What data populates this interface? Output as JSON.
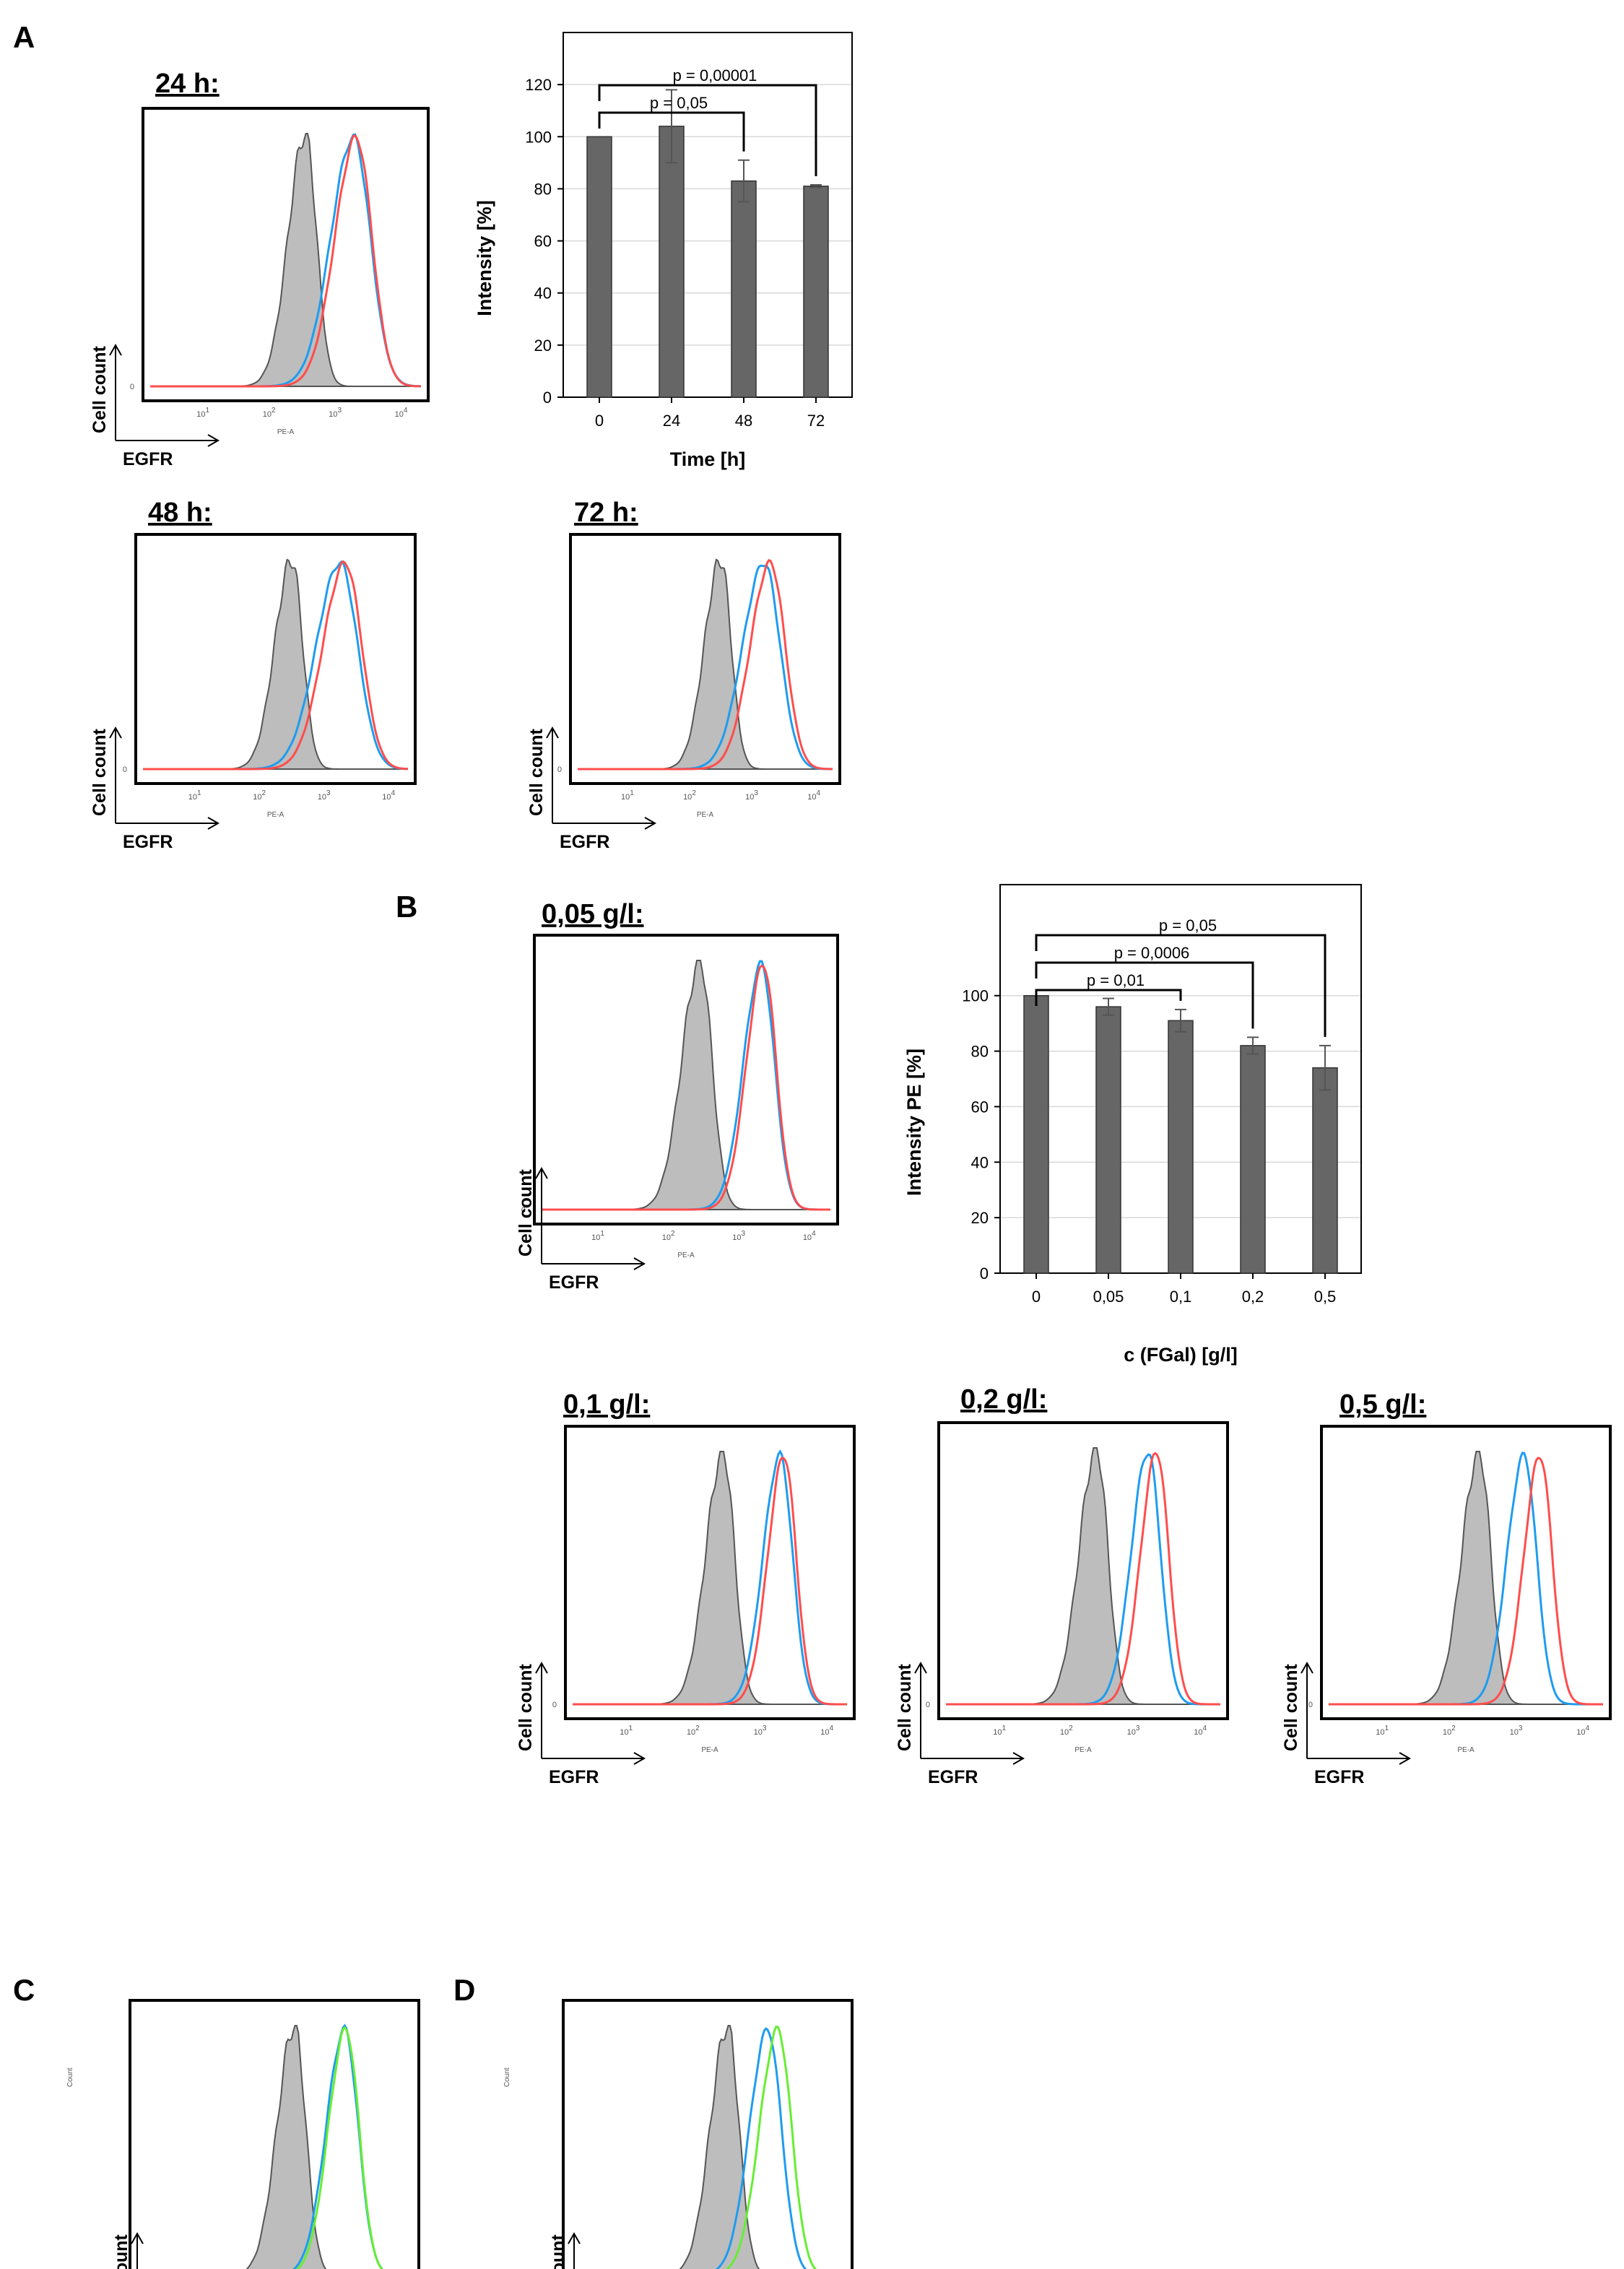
{
  "panels": {
    "A": "A",
    "B": "B",
    "C": "C",
    "D": "D"
  },
  "colors": {
    "control_fill": "#bdbdbd",
    "control_line": "#555555",
    "untreated": "#ff4d4d",
    "treated": "#1e9cf0",
    "alt": "#66ee33",
    "bar": "#666666"
  },
  "hist_axis": {
    "y_label": "Cell count",
    "x_label": "EGFR",
    "pe_label": "PE-A",
    "count_label": "Count",
    "zero": "0",
    "ticks": [
      "10",
      "10",
      "10",
      "10"
    ],
    "exps": [
      "1",
      "2",
      "3",
      "4"
    ]
  },
  "histograms": [
    {
      "name": "hist-a-24h",
      "title": "24 h:",
      "control_peak": 2.55,
      "peaks": [
        {
          "series": "treated",
          "center": 3.28,
          "width": 0.3
        },
        {
          "series": "untreated",
          "center": 3.32,
          "width": 0.28
        }
      ]
    },
    {
      "name": "hist-a-48h",
      "title": "48 h:",
      "control_peak": 2.5,
      "peaks": [
        {
          "series": "treated",
          "center": 3.25,
          "width": 0.32
        },
        {
          "series": "untreated",
          "center": 3.33,
          "width": 0.3
        }
      ]
    },
    {
      "name": "hist-a-72h",
      "title": "72 h:",
      "control_peak": 2.5,
      "peaks": [
        {
          "series": "treated",
          "center": 3.2,
          "width": 0.3
        },
        {
          "series": "untreated",
          "center": 3.3,
          "width": 0.28
        }
      ]
    },
    {
      "name": "hist-b-005",
      "title": "0,05 g/l:",
      "control_peak": 2.45,
      "peaks": [
        {
          "series": "treated",
          "center": 3.32,
          "width": 0.22
        },
        {
          "series": "untreated",
          "center": 3.35,
          "width": 0.21
        }
      ]
    },
    {
      "name": "hist-b-01",
      "title": "0,1 g/l:",
      "control_peak": 2.45,
      "peaks": [
        {
          "series": "treated",
          "center": 3.3,
          "width": 0.22
        },
        {
          "series": "untreated",
          "center": 3.36,
          "width": 0.21
        }
      ]
    },
    {
      "name": "hist-b-02",
      "title": "0,2 g/l:",
      "control_peak": 2.45,
      "peaks": [
        {
          "series": "treated",
          "center": 3.22,
          "width": 0.22
        },
        {
          "series": "untreated",
          "center": 3.35,
          "width": 0.21
        }
      ]
    },
    {
      "name": "hist-b-05",
      "title": "0,5 g/l:",
      "control_peak": 2.45,
      "peaks": [
        {
          "series": "treated",
          "center": 3.12,
          "width": 0.22
        },
        {
          "series": "untreated",
          "center": 3.36,
          "width": 0.21
        }
      ]
    },
    {
      "name": "hist-c",
      "title": "",
      "control_peak": 2.55,
      "peaks": [
        {
          "series": "treated",
          "center": 3.3,
          "width": 0.24
        },
        {
          "series": "alt",
          "center": 3.32,
          "width": 0.23
        }
      ]
    },
    {
      "name": "hist-d",
      "title": "",
      "control_peak": 2.55,
      "peaks": [
        {
          "series": "treated",
          "center": 3.15,
          "width": 0.24
        },
        {
          "series": "alt",
          "center": 3.3,
          "width": 0.24
        }
      ]
    }
  ],
  "chart_data": [
    {
      "type": "bar",
      "name": "bar-chart-a",
      "categories": [
        "0",
        "24",
        "48",
        "72"
      ],
      "values": [
        100,
        104,
        83,
        81
      ],
      "errors": [
        0,
        14,
        8,
        0.5
      ],
      "xlabel": "Time [h]",
      "ylabel": "Intensity [%]",
      "ylim": [
        0,
        140
      ],
      "yticks": [
        "0",
        "20",
        "40",
        "60",
        "80",
        "100",
        "120"
      ],
      "grid": true,
      "comparisons": [
        {
          "label": "p = 0,05",
          "from": 0,
          "to": 2
        },
        {
          "label": "p = 0,00001",
          "from": 0,
          "to": 3
        }
      ]
    },
    {
      "type": "bar",
      "name": "bar-chart-b",
      "categories": [
        "0",
        "0,05",
        "0,1",
        "0,2",
        "0,5"
      ],
      "values": [
        100,
        96,
        91,
        82,
        74
      ],
      "errors": [
        0,
        3,
        4,
        3,
        8
      ],
      "xlabel": "c (FGal)  [g/l]",
      "ylabel": "Intensity PE [%]",
      "ylim": [
        0,
        140
      ],
      "yticks": [
        "0",
        "20",
        "40",
        "60",
        "80",
        "100"
      ],
      "grid": true,
      "comparisons": [
        {
          "label": "p = 0,01",
          "from": 0,
          "to": 2
        },
        {
          "label": "p = 0,0006",
          "from": 0,
          "to": 3
        },
        {
          "label": "p = 0,05",
          "from": 0,
          "to": 4
        }
      ]
    }
  ]
}
